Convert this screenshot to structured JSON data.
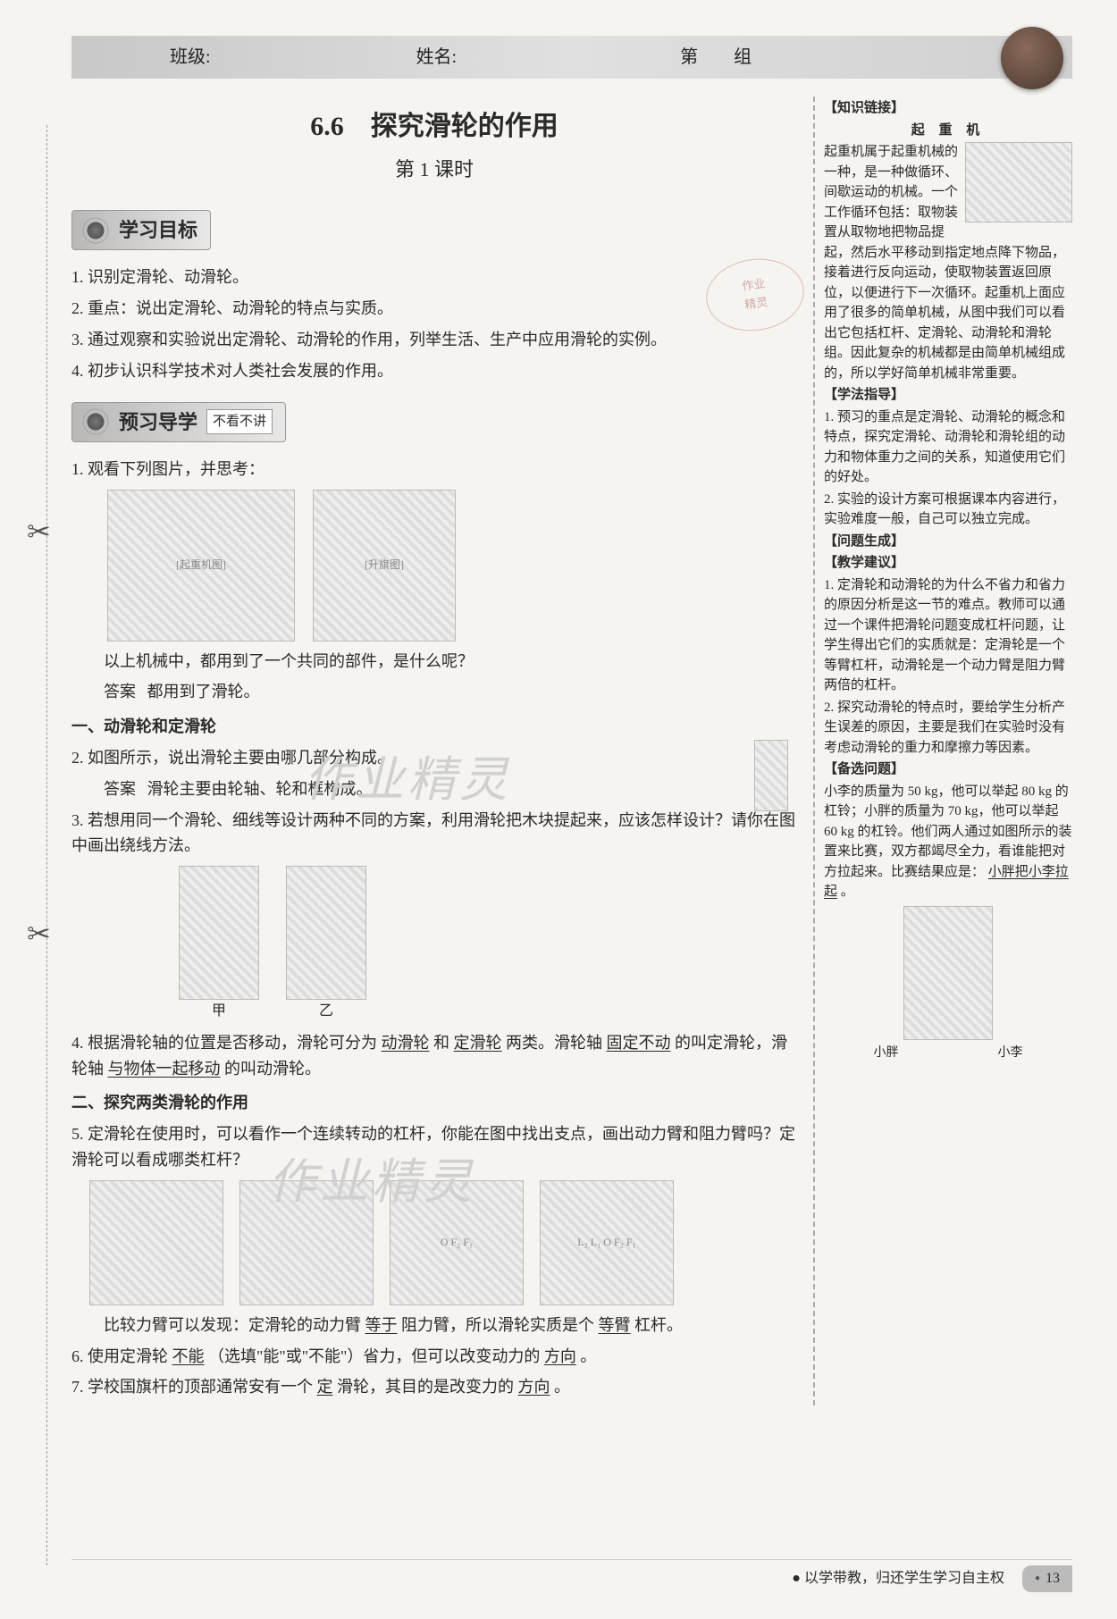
{
  "header": {
    "class_label": "班级:",
    "name_label": "姓名:",
    "group_prefix": "第",
    "group_suffix": "组"
  },
  "title": {
    "section_number": "6.6",
    "section_title": "探究滑轮的作用",
    "lesson": "第 1 课时"
  },
  "stamp": {
    "line1": "作业",
    "line2": "精灵"
  },
  "learning_goals": {
    "heading": "学习目标",
    "items": [
      "1. 识别定滑轮、动滑轮。",
      "2. 重点：说出定滑轮、动滑轮的特点与实质。",
      "3. 通过观察和实验说出定滑轮、动滑轮的作用，列举生活、生产中应用滑轮的实例。",
      "4. 初步认识科学技术对人类社会发展的作用。"
    ]
  },
  "preview": {
    "heading": "预习导学",
    "tag": "不看不讲",
    "q1": {
      "prompt": "1. 观看下列图片，并思考：",
      "line": "以上机械中，都用到了一个共同的部件，是什么呢？",
      "answer_label": "答案",
      "answer": "都用到了滑轮。"
    },
    "subhead1": "一、动滑轮和定滑轮",
    "q2": {
      "prompt": "2. 如图所示，说出滑轮主要由哪几部分构成。",
      "answer_label": "答案",
      "answer": "滑轮主要由轮轴、轮和框构成。"
    },
    "q3": {
      "prompt": "3. 若想用同一个滑轮、细线等设计两种不同的方案，利用滑轮把木块提起来，应该怎样设计？请你在图中画出绕线方法。",
      "labels": {
        "a": "甲",
        "b": "乙"
      }
    },
    "q4": {
      "prefix": "4. 根据滑轮轴的位置是否移动，滑轮可分为",
      "blank1": "动滑轮",
      "mid1": "和",
      "blank2": "定滑轮",
      "mid2": "两类。滑轮轴",
      "blank3": "固定不动",
      "mid3": "的叫定滑轮，滑轮轴",
      "blank4": "与物体一起移动",
      "suffix": "的叫动滑轮。"
    },
    "subhead2": "二、探究两类滑轮的作用",
    "q5": {
      "prompt": "5. 定滑轮在使用时，可以看作一个连续转动的杠杆，你能在图中找出支点，画出动力臂和阻力臂吗？定滑轮可以看成哪类杠杆？",
      "analysis_prefix": "比较力臂可以发现：定滑轮的动力臂",
      "blank1": "等于",
      "mid1": "阻力臂，所以滑轮实质是个",
      "blank2": "等臂",
      "suffix": "杠杆。"
    },
    "q6": {
      "prefix": "6. 使用定滑轮",
      "blank1": "不能",
      "mid1": "（选填\"能\"或\"不能\"）省力，但可以改变动力的",
      "blank2": "方向",
      "suffix": "。"
    },
    "q7": {
      "prefix": "7. 学校国旗杆的顶部通常安有一个",
      "blank1": "定",
      "mid1": "滑轮，其目的是改变力的",
      "blank2": "方向",
      "suffix": "。"
    }
  },
  "sidebar": {
    "knowledge": {
      "heading": "【知识链接】",
      "subheading": "起 重 机",
      "text": "起重机属于起重机械的一种，是一种做循环、间歇运动的机械。一个工作循环包括：取物装置从取物地把物品提起，然后水平移动到指定地点降下物品，接着进行反向运动，使取物装置返回原位，以便进行下一次循环。起重机上面应用了很多的简单机械，从图中我们可以看出它包括杠杆、定滑轮、动滑轮和滑轮组。因此复杂的机械都是由简单机械组成的，所以学好简单机械非常重要。"
    },
    "method": {
      "heading": "【学法指导】",
      "items": [
        "1. 预习的重点是定滑轮、动滑轮的概念和特点，探究定滑轮、动滑轮和滑轮组的动力和物体重力之间的关系，知道使用它们的好处。",
        "2. 实验的设计方案可根据课本内容进行，实验难度一般，自己可以独立完成。"
      ]
    },
    "generate": {
      "heading": "【问题生成】"
    },
    "teaching": {
      "heading": "【教学建议】",
      "items": [
        "1. 定滑轮和动滑轮的为什么不省力和省力的原因分析是这一节的难点。教师可以通过一个课件把滑轮问题变成杠杆问题，让学生得出它们的实质就是：定滑轮是一个等臂杠杆，动滑轮是一个动力臂是阻力臂两倍的杠杆。",
        "2. 探究动滑轮的特点时，要给学生分析产生误差的原因，主要是我们在实验时没有考虑动滑轮的重力和摩擦力等因素。"
      ]
    },
    "alt_problem": {
      "heading": "【备选问题】",
      "text": "小李的质量为 50 kg，他可以举起 80 kg 的杠铃；小胖的质量为 70 kg，他可以举起 60 kg 的杠铃。他们两人通过如图所示的装置来比赛，双方都竭尽全力，看谁能把对方拉起来。比赛结果应是：",
      "answer": "小胖把小李拉起",
      "suffix": "。",
      "names": {
        "left": "小胖",
        "right": "小李"
      }
    }
  },
  "watermark": "作业精灵",
  "footer": {
    "motto": "● 以学带教，归还学生学习自主权",
    "page": "13"
  },
  "colors": {
    "page_bg": "#f5f4f0",
    "header_bg": "#c8c8c8",
    "text": "#2a2a2a",
    "watermark": "#d0d0d0",
    "stamp": "#b77"
  }
}
